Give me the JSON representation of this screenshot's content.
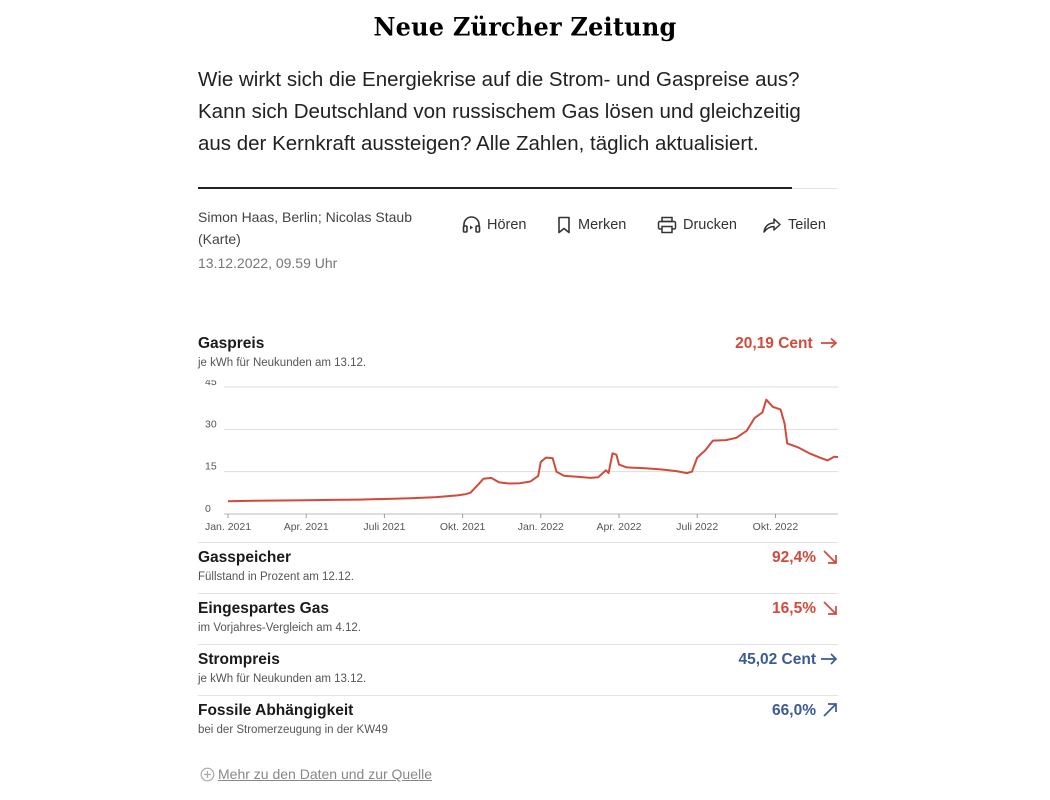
{
  "masthead": "Neue Zürcher Zeitung",
  "lead": "Wie wirkt sich die Energiekrise auf die Strom- und Gaspreise aus? Kann sich Deutschland von russischem Gas lösen und gleichzeitig aus der Kernkraft aussteigen? Alle Zahlen, täglich aktualisiert.",
  "byline": {
    "authors": "Simon Haas, Berlin; Nicolas Staub (Karte)",
    "date": "13.12.2022, 09.59 Uhr"
  },
  "actions": {
    "listen": "Hören",
    "bookmark": "Merken",
    "print": "Drucken",
    "share": "Teilen"
  },
  "gas_chart": {
    "title": "Gaspreis",
    "subtitle": "je kWh für Neukunden am 13.12.",
    "value": "20,19 Cent",
    "trend": "right",
    "colors": {
      "line": "#d24a3b",
      "grid": "#dddddd",
      "axis_text": "#555555"
    }
  },
  "chart_data": {
    "type": "line",
    "title": "Gaspreis",
    "subtitle": "je kWh für Neukunden am 13.12.",
    "x_unit": "months since Jan. 2021",
    "xlim": [
      0,
      23.4
    ],
    "ylim": [
      0,
      45
    ],
    "yticks": [
      0,
      15,
      30,
      45
    ],
    "xticks": [
      {
        "x": 0,
        "label": "Jan. 2021"
      },
      {
        "x": 3,
        "label": "Apr. 2021"
      },
      {
        "x": 6,
        "label": "Juli 2021"
      },
      {
        "x": 9,
        "label": "Okt. 2021"
      },
      {
        "x": 12,
        "label": "Jan. 2022"
      },
      {
        "x": 15,
        "label": "Apr. 2022"
      },
      {
        "x": 18,
        "label": "Juli 2022"
      },
      {
        "x": 21,
        "label": "Okt. 2022"
      }
    ],
    "grid": true,
    "series": [
      {
        "color": "#d24a3b",
        "points": [
          [
            0,
            4.5
          ],
          [
            1,
            4.7
          ],
          [
            2,
            4.8
          ],
          [
            3,
            4.9
          ],
          [
            4,
            5.0
          ],
          [
            5,
            5.1
          ],
          [
            6,
            5.3
          ],
          [
            7,
            5.6
          ],
          [
            8,
            6.0
          ],
          [
            8.8,
            6.6
          ],
          [
            9.1,
            7.0
          ],
          [
            9.3,
            7.5
          ],
          [
            9.6,
            10.5
          ],
          [
            9.8,
            12.5
          ],
          [
            10.1,
            12.8
          ],
          [
            10.4,
            11.2
          ],
          [
            10.8,
            10.8
          ],
          [
            11.2,
            10.9
          ],
          [
            11.6,
            11.5
          ],
          [
            11.9,
            13.5
          ],
          [
            12.0,
            18.5
          ],
          [
            12.2,
            20.0
          ],
          [
            12.45,
            19.8
          ],
          [
            12.6,
            15.0
          ],
          [
            12.9,
            13.5
          ],
          [
            13.4,
            13.2
          ],
          [
            13.9,
            12.8
          ],
          [
            14.2,
            13.0
          ],
          [
            14.5,
            15.5
          ],
          [
            14.6,
            14.5
          ],
          [
            14.75,
            21.5
          ],
          [
            14.9,
            21.0
          ],
          [
            15.0,
            17.5
          ],
          [
            15.3,
            16.5
          ],
          [
            16.0,
            16.2
          ],
          [
            16.6,
            15.8
          ],
          [
            17.2,
            15.2
          ],
          [
            17.6,
            14.5
          ],
          [
            17.8,
            15.0
          ],
          [
            18.0,
            20.0
          ],
          [
            18.3,
            22.5
          ],
          [
            18.6,
            26.0
          ],
          [
            19.1,
            26.2
          ],
          [
            19.5,
            27.0
          ],
          [
            19.9,
            29.5
          ],
          [
            20.2,
            34.0
          ],
          [
            20.5,
            36.0
          ],
          [
            20.65,
            40.5
          ],
          [
            20.9,
            38.0
          ],
          [
            21.2,
            37.0
          ],
          [
            21.35,
            32.0
          ],
          [
            21.45,
            25.0
          ],
          [
            21.9,
            23.5
          ],
          [
            22.3,
            21.5
          ],
          [
            22.7,
            20.0
          ],
          [
            23.0,
            19.0
          ],
          [
            23.1,
            19.5
          ],
          [
            23.25,
            20.3
          ],
          [
            23.4,
            20.2
          ]
        ]
      }
    ]
  },
  "rows": [
    {
      "title": "Gasspeicher",
      "subtitle": "Füllstand in Prozent am 12.12.",
      "value": "92,4%",
      "color": "red",
      "arrow": "down-right"
    },
    {
      "title": "Eingespartes Gas",
      "subtitle": "im Vorjahres-Vergleich am 4.12.",
      "value": "16,5%",
      "color": "red",
      "arrow": "down-right"
    },
    {
      "title": "Strompreis",
      "subtitle": "je kWh für Neukunden am 13.12.",
      "value": "45,02 Cent",
      "color": "blue",
      "arrow": "right"
    },
    {
      "title": "Fossile Abhängigkeit",
      "subtitle": "bei der Stromerzeugung in der KW49",
      "value": "66,0%",
      "color": "blue",
      "arrow": "up-right"
    }
  ],
  "more_link": "Mehr zu den Daten und zur Quelle"
}
